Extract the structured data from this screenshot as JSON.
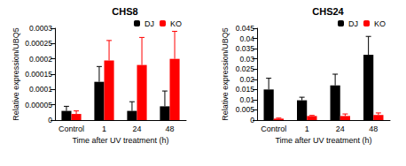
{
  "chart_data": [
    {
      "type": "bar",
      "title": "CHS8",
      "x_label": "Time after UV treatment (h)",
      "y_label": "Relative expression/UBQ5",
      "categories": [
        "Control",
        "1",
        "24",
        "48"
      ],
      "series": [
        {
          "name": "DJ",
          "color": "#000000",
          "values": [
            3e-05,
            0.000125,
            3e-05,
            4.5e-05
          ],
          "errors": [
            1.5e-05,
            5e-05,
            3e-05,
            5e-05
          ]
        },
        {
          "name": "KO",
          "color": "#ff0000",
          "values": [
            2e-05,
            0.000195,
            0.00018,
            0.0002
          ],
          "errors": [
            1e-05,
            6.5e-05,
            9e-05,
            9e-05
          ]
        }
      ],
      "ylim": [
        0,
        0.0003
      ],
      "yticks": [
        0,
        5e-05,
        0.0001,
        0.00015,
        0.0002,
        0.00025,
        0.0003
      ],
      "grid": false,
      "legend": "upper right"
    },
    {
      "type": "bar",
      "title": "CHS24",
      "x_label": "Time after UV treatment (h)",
      "y_label": "Relative expression/UBQ5",
      "categories": [
        "Control",
        "1",
        "24",
        "48"
      ],
      "series": [
        {
          "name": "DJ",
          "color": "#000000",
          "values": [
            0.015,
            0.0097,
            0.017,
            0.032
          ],
          "errors": [
            0.0055,
            0.0015,
            0.0055,
            0.009
          ]
        },
        {
          "name": "KO",
          "color": "#ff0000",
          "values": [
            0.0007,
            0.002,
            0.002,
            0.0025
          ],
          "errors": [
            0.0003,
            0.0003,
            0.001,
            0.001
          ]
        }
      ],
      "ylim": [
        0,
        0.045
      ],
      "yticks": [
        0,
        0.005,
        0.01,
        0.015,
        0.02,
        0.025,
        0.03,
        0.035,
        0.04,
        0.045
      ],
      "grid": false,
      "legend": "upper right"
    }
  ]
}
